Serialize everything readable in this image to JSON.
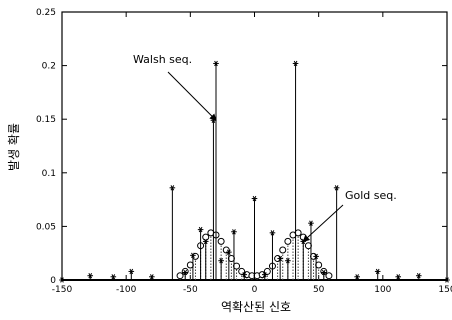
{
  "chart_data": {
    "type": "scatter",
    "title": "",
    "xlabel": "역확산된 신호",
    "ylabel": "발생 확률",
    "xlim": [
      -150,
      150
    ],
    "ylim": [
      0,
      0.25
    ],
    "xticks": [
      -150,
      -100,
      -50,
      0,
      50,
      100,
      150
    ],
    "yticks": [
      0,
      0.05,
      0.1,
      0.15,
      0.2,
      0.25
    ],
    "xtick_labels": [
      "-150",
      "-100",
      "-50",
      "0",
      "50",
      "100",
      "150"
    ],
    "ytick_labels": [
      "0",
      "0.05",
      "0.1",
      "0.15",
      "0.2",
      "0.25"
    ],
    "grid": false,
    "markers": "stem",
    "series": [
      {
        "name": "Walsh seq.",
        "marker": "asterisk",
        "line": "solid",
        "points": [
          {
            "x": -150,
            "y": 0.0
          },
          {
            "x": -128,
            "y": 0.004
          },
          {
            "x": -110,
            "y": 0.003
          },
          {
            "x": -96,
            "y": 0.008
          },
          {
            "x": -80,
            "y": 0.003
          },
          {
            "x": -64,
            "y": 0.086
          },
          {
            "x": -54,
            "y": 0.007
          },
          {
            "x": -48,
            "y": 0.023
          },
          {
            "x": -42,
            "y": 0.047
          },
          {
            "x": -38,
            "y": 0.036
          },
          {
            "x": -32,
            "y": 0.149
          },
          {
            "x": -30,
            "y": 0.202
          },
          {
            "x": -26,
            "y": 0.018
          },
          {
            "x": -20,
            "y": 0.026
          },
          {
            "x": -16,
            "y": 0.045
          },
          {
            "x": -8,
            "y": 0.005
          },
          {
            "x": 0,
            "y": 0.076
          },
          {
            "x": 8,
            "y": 0.005
          },
          {
            "x": 14,
            "y": 0.044
          },
          {
            "x": 20,
            "y": 0.02
          },
          {
            "x": 26,
            "y": 0.018
          },
          {
            "x": 32,
            "y": 0.202
          },
          {
            "x": 38,
            "y": 0.036
          },
          {
            "x": 44,
            "y": 0.053
          },
          {
            "x": 48,
            "y": 0.022
          },
          {
            "x": 54,
            "y": 0.007
          },
          {
            "x": 64,
            "y": 0.086
          },
          {
            "x": 80,
            "y": 0.003
          },
          {
            "x": 96,
            "y": 0.008
          },
          {
            "x": 112,
            "y": 0.003
          },
          {
            "x": 128,
            "y": 0.004
          },
          {
            "x": 150,
            "y": 0.0
          }
        ]
      },
      {
        "name": "Gold seq.",
        "marker": "circle",
        "line": "dotted",
        "points": [
          {
            "x": -58,
            "y": 0.004
          },
          {
            "x": -54,
            "y": 0.008
          },
          {
            "x": -50,
            "y": 0.014
          },
          {
            "x": -46,
            "y": 0.022
          },
          {
            "x": -42,
            "y": 0.032
          },
          {
            "x": -38,
            "y": 0.04
          },
          {
            "x": -34,
            "y": 0.044
          },
          {
            "x": -30,
            "y": 0.042
          },
          {
            "x": -26,
            "y": 0.036
          },
          {
            "x": -22,
            "y": 0.028
          },
          {
            "x": -18,
            "y": 0.02
          },
          {
            "x": -14,
            "y": 0.013
          },
          {
            "x": -10,
            "y": 0.008
          },
          {
            "x": -6,
            "y": 0.005
          },
          {
            "x": -2,
            "y": 0.004
          },
          {
            "x": 2,
            "y": 0.004
          },
          {
            "x": 6,
            "y": 0.005
          },
          {
            "x": 10,
            "y": 0.008
          },
          {
            "x": 14,
            "y": 0.013
          },
          {
            "x": 18,
            "y": 0.02
          },
          {
            "x": 22,
            "y": 0.028
          },
          {
            "x": 26,
            "y": 0.036
          },
          {
            "x": 30,
            "y": 0.042
          },
          {
            "x": 34,
            "y": 0.044
          },
          {
            "x": 38,
            "y": 0.04
          },
          {
            "x": 42,
            "y": 0.032
          },
          {
            "x": 46,
            "y": 0.022
          },
          {
            "x": 50,
            "y": 0.014
          },
          {
            "x": 54,
            "y": 0.008
          },
          {
            "x": 58,
            "y": 0.004
          }
        ]
      }
    ],
    "annotations": [
      {
        "text": "Walsh seq.",
        "target": {
          "x": -30,
          "y": 0.149
        }
      },
      {
        "text": "Gold seq.",
        "target": {
          "x": 38,
          "y": 0.036
        }
      }
    ]
  }
}
